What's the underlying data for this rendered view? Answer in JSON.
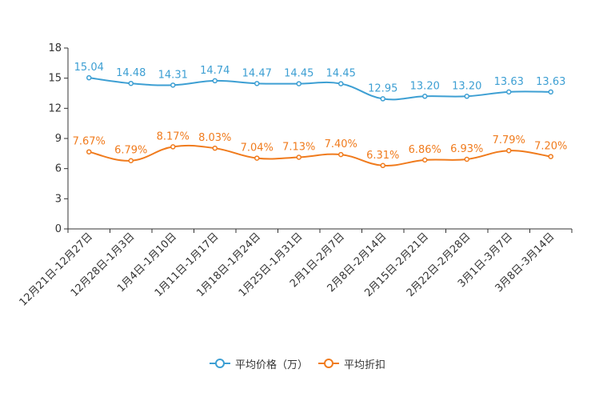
{
  "chart_data": {
    "type": "line",
    "categories": [
      "12月21日-12月27日",
      "12月28日-1月3日",
      "1月4日-1月10日",
      "1月11日-1月17日",
      "1月18日-1月24日",
      "1月25日-1月31日",
      "2月1日-2月7日",
      "2月8日-2月14日",
      "2月15日-2月21日",
      "2月22日-2月28日",
      "3月1日-3月7日",
      "3月8日-3月14日"
    ],
    "ylim": [
      0,
      18
    ],
    "yticks": [
      "0",
      "3",
      "6",
      "9",
      "12",
      "15",
      "18"
    ],
    "series": [
      {
        "name": "平均价格（万）",
        "color": "#3d9fd3",
        "values": [
          15.04,
          14.48,
          14.31,
          14.74,
          14.47,
          14.45,
          14.45,
          12.95,
          13.2,
          13.2,
          13.63,
          13.63
        ],
        "labels": [
          "15.04",
          "14.48",
          "14.31",
          "14.74",
          "14.47",
          "14.45",
          "14.45",
          "12.95",
          "13.20",
          "13.20",
          "13.63",
          "13.63"
        ]
      },
      {
        "name": "平均折扣",
        "color": "#f07b1d",
        "values": [
          7.67,
          6.79,
          8.17,
          8.03,
          7.04,
          7.13,
          7.4,
          6.31,
          6.86,
          6.93,
          7.79,
          7.2
        ],
        "labels": [
          "7.67%",
          "6.79%",
          "8.17%",
          "8.03%",
          "7.04%",
          "7.13%",
          "7.40%",
          "6.31%",
          "6.86%",
          "6.93%",
          "7.79%",
          "7.20%"
        ]
      }
    ],
    "legend_position": "bottom-center"
  }
}
